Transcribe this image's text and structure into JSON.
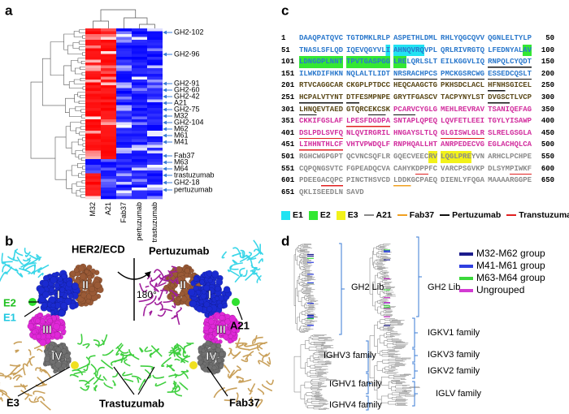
{
  "panel_a": {
    "label": "a",
    "rows": [
      "GH2-102",
      "GH2-96",
      "GH2-91",
      "GH2-60",
      "GH2-42",
      "A21",
      "GH2-75",
      "M32",
      "GH2-104",
      "M62",
      "M61",
      "M41",
      "Fab37",
      "M63",
      "M64",
      "trastuzumab",
      "GH2-18",
      "pertuzumab"
    ],
    "columns": [
      "M32",
      "A21",
      "Fab37",
      "pertuzumab",
      "trastuzumab"
    ]
  },
  "panel_b": {
    "label": "b",
    "her2": "HER2/ECD",
    "pertuzumab": "Pertuzumab",
    "rotation": "180°",
    "e1": "E1",
    "e2": "E2",
    "e3": "E3",
    "a21": "A21",
    "trastuzumab": "Trastuzumab",
    "fab37": "Fab37",
    "domains": [
      "I",
      "II",
      "III",
      "IV"
    ]
  },
  "panel_c": {
    "label": "c",
    "lines": [
      {
        "start": 1,
        "blocks": [
          "DAAQPATQVC",
          "TGTDMKLRLP",
          "ASPETHLDML",
          "RHLYQGCQVV",
          "QGNLELTYLP"
        ],
        "end": 50
      },
      {
        "start": 51,
        "blocks": [
          "TNASLSFLQD",
          "IQEVQGYVLI",
          "AHNQVRQVPL",
          "QRLRIVRGTQ",
          "LFEDNYALAV"
        ],
        "end": 100
      },
      {
        "start": 101,
        "blocks": [
          "LDNGDPLNNT",
          "TPVTGASPGG",
          "LRELQRLSLT",
          "EILKGGVLIQ",
          "RNPQLCYQDT"
        ],
        "end": 150
      },
      {
        "start": 151,
        "blocks": [
          "ILWKDIFHKN",
          "NQLALTLIDT",
          "NRSRACHPCS",
          "PMCKGSRCWG",
          "ESSEDCQSLT"
        ],
        "end": 200
      },
      {
        "start": 201,
        "blocks": [
          "RTVCAGGCAR",
          "CKGPLPTDCC",
          "HEQCAAGCTG",
          "PKHSDCLACL",
          "HFNHSGICEL"
        ],
        "end": 250
      },
      {
        "start": 251,
        "blocks": [
          "HCPALVTYNT",
          "DTFESMPNPE",
          "GRYTFGASCV",
          "TACPYNYLST",
          "DVGSCTLVCP"
        ],
        "end": 300
      },
      {
        "start": 301,
        "blocks": [
          "LHNQEVTAED",
          "GTQRCEKCSK",
          "PCARVCYGLG",
          "MEHLREVRAV",
          "TSANIQEFAG"
        ],
        "end": 350
      },
      {
        "start": 351,
        "blocks": [
          "CKKIFGSLAF",
          "LPESFDGDPA",
          "SNTAPLQPEQ",
          "LQVFETLEEI",
          "TGYLYISAWP"
        ],
        "end": 400
      },
      {
        "start": 401,
        "blocks": [
          "DSLPDLSVFQ",
          "NLQVIRGRIL",
          "HNGAYSLTLQ",
          "GLGISWLGLR",
          "SLRELGSGLA"
        ],
        "end": 450
      },
      {
        "start": 451,
        "blocks": [
          "LIHHNTHLCF",
          "VHTVPWDQLF",
          "RNPHQALLHT",
          "ANRPEDECVG",
          "EGLACHQLCA"
        ],
        "end": 500
      },
      {
        "start": 501,
        "blocks": [
          "RGHCWGPGPT",
          "QCVNCSQFLR",
          "GQECVEECRV",
          "LQGLPREYVN",
          "ARHCLPCHPE"
        ],
        "end": 550
      },
      {
        "start": 551,
        "blocks": [
          "CQPQNGSVTC",
          "FGPEADQCVA",
          "CAHYKDPPFC",
          "VARCPSGVKP",
          "DLSYMPIWKF"
        ],
        "end": 600
      },
      {
        "start": 601,
        "blocks": [
          "PDEEGACQPC",
          "PINCTHSVCD",
          "LDDKGCPAEQ",
          "DIENLYFQGA",
          "MAAAARGGPE"
        ],
        "end": 650
      },
      {
        "start": 651,
        "blocks": [
          "QKLISEEDLN",
          "SAVD"
        ]
      }
    ],
    "legend": [
      {
        "name": "E1",
        "color": "#22e3f2",
        "mark": "box"
      },
      {
        "name": "E2",
        "color": "#33e833",
        "mark": "box"
      },
      {
        "name": "E3",
        "color": "#f2f21a",
        "mark": "box"
      },
      {
        "name": "A21",
        "color": "#8a8a8a",
        "mark": "line"
      },
      {
        "name": "Fab37",
        "color": "#f0a020",
        "mark": "line"
      },
      {
        "name": "Pertuzumab",
        "color": "#111111",
        "mark": "line"
      },
      {
        "name": "Transtuzumab",
        "color": "#e02020",
        "mark": "line"
      }
    ]
  },
  "panel_d": {
    "label": "d",
    "left_clades": [
      "GH2 Lib",
      "IGHV3 family",
      "IGHV1 family",
      "IGHV4 family"
    ],
    "right_clades": [
      "GH2 Lib",
      "IGKV1 family",
      "IGKV3 family",
      "IGKV2 family",
      "IGLV family"
    ],
    "legend": [
      {
        "name": "M32-M62 group",
        "color": "#1c1c8c"
      },
      {
        "name": "M41-M61 group",
        "color": "#2f3fe0"
      },
      {
        "name": "M63-M64 group",
        "color": "#3bd83b"
      },
      {
        "name": "Ungrouped",
        "color": "#d23ad2"
      }
    ]
  }
}
